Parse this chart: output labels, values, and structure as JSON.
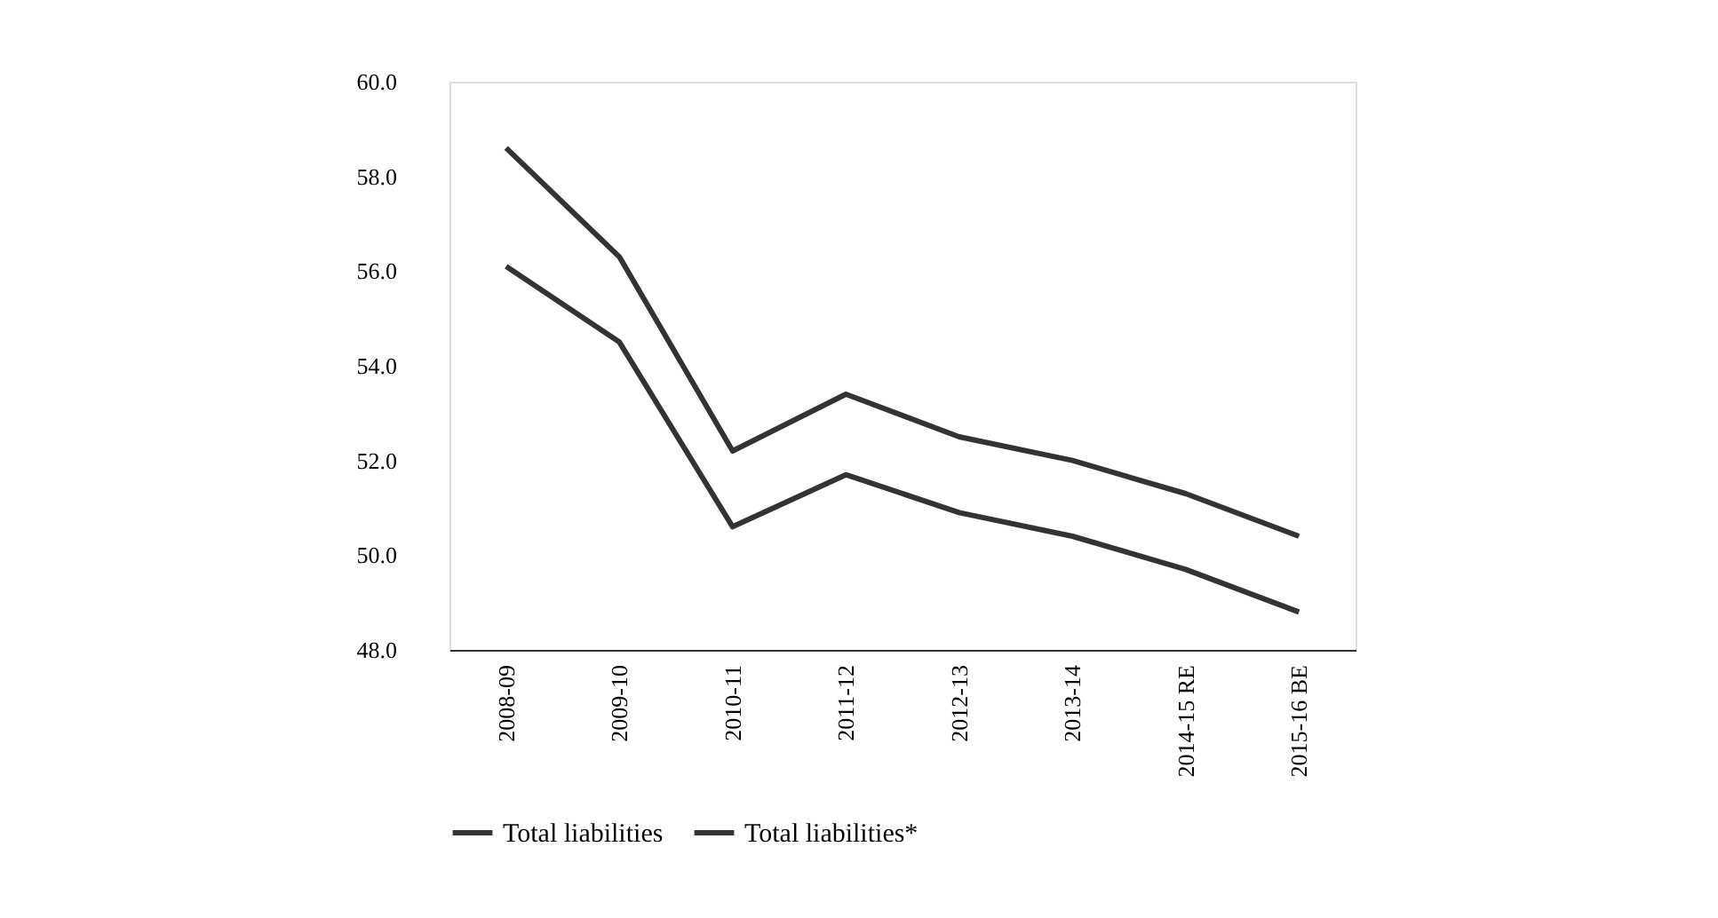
{
  "chart_data": {
    "type": "line",
    "categories": [
      "2008-09",
      "2009-10",
      "2010-11",
      "2011-12",
      "2012-13",
      "2013-14",
      "2014-15 RE",
      "2015-16 BE"
    ],
    "series": [
      {
        "name": "Total liabilities",
        "color": "#333333",
        "values": [
          58.6,
          56.3,
          52.2,
          53.4,
          52.5,
          52.0,
          51.3,
          50.4
        ]
      },
      {
        "name": "Total liabilities*",
        "color": "#333333",
        "values": [
          56.1,
          54.5,
          50.6,
          51.7,
          50.9,
          50.4,
          49.7,
          48.8
        ]
      }
    ],
    "ylim": [
      48,
      60
    ],
    "yticks": [
      {
        "value": 48,
        "label": "48.0"
      },
      {
        "value": 50,
        "label": "50.0"
      },
      {
        "value": 52,
        "label": "52.0"
      },
      {
        "value": 54,
        "label": "54.0"
      },
      {
        "value": 56,
        "label": "56.0"
      },
      {
        "value": 58,
        "label": "58.0"
      },
      {
        "value": 60,
        "label": "60.0"
      }
    ],
    "grid": false,
    "legend": "bottom",
    "marker": "none",
    "line_style": "solid"
  }
}
